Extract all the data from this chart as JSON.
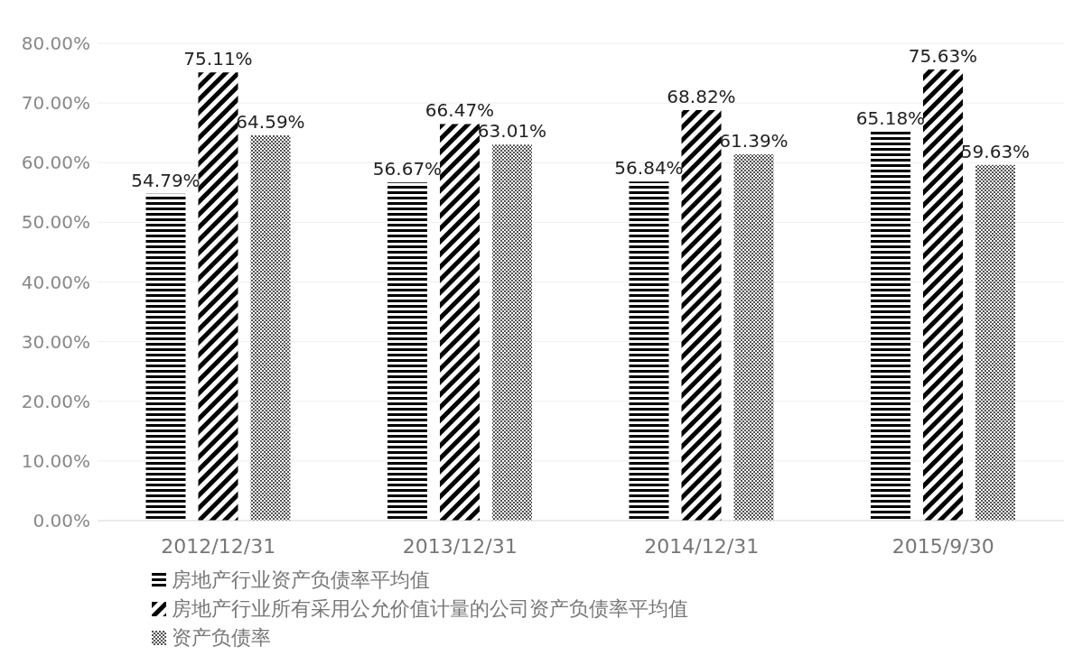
{
  "chart_data": {
    "type": "bar",
    "categories": [
      "2012/12/31",
      "2013/12/31",
      "2014/12/31",
      "2015/9/30"
    ],
    "series": [
      {
        "name": "房地产行业资产负债率平均值",
        "color": "#000000",
        "values": [
          54.79,
          56.67,
          56.84,
          65.18
        ],
        "value_labels": [
          "54.79%",
          "56.67%",
          "56.84%",
          "65.18%"
        ]
      },
      {
        "name": "房地产行业所有采用公允价值计量的公司资产负债率平均值",
        "color": "#000000",
        "values": [
          75.11,
          66.47,
          68.82,
          75.63
        ],
        "value_labels": [
          "75.11%",
          "66.47%",
          "68.82%",
          "75.63%"
        ]
      },
      {
        "name": "资产负债率",
        "color": "#000000",
        "values": [
          64.59,
          63.01,
          61.39,
          59.63
        ],
        "value_labels": [
          "64.59%",
          "63.01%",
          "61.39%",
          "59.63%"
        ]
      }
    ],
    "ylim": [
      0,
      80
    ],
    "yticks": [
      {
        "value": 0,
        "label": "0.00%"
      },
      {
        "value": 10,
        "label": "10.00%"
      },
      {
        "value": 20,
        "label": "20.00%"
      },
      {
        "value": 30,
        "label": "30.00%"
      },
      {
        "value": 40,
        "label": "40.00%"
      },
      {
        "value": 50,
        "label": "50.00%"
      },
      {
        "value": 60,
        "label": "60.00%"
      },
      {
        "value": 70,
        "label": "70.00%"
      },
      {
        "value": 80,
        "label": "80.00%"
      }
    ],
    "grid": "y",
    "legend": "bottom"
  }
}
